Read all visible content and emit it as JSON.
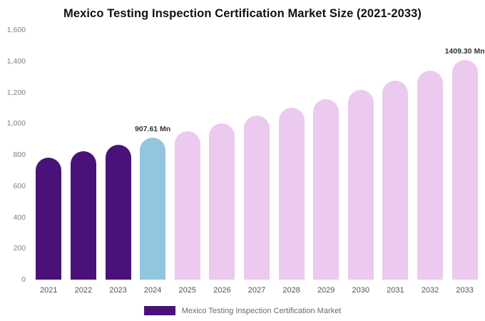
{
  "title": "Mexico Testing Inspection Certification Market Size (2021-2033)",
  "legend": {
    "label": "Mexico Testing Inspection Certification Market",
    "swatch_color": "#4a1279"
  },
  "colors": {
    "historical_bar": "#4a1279",
    "current_bar": "#92c5de",
    "forecast_bar": "#ecc9ee",
    "annotation_text": "#333333",
    "axis_text": "#808080"
  },
  "chart_data": {
    "type": "bar",
    "title": "Mexico Testing Inspection Certification Market Size (2021-2033)",
    "xlabel": "",
    "ylabel": "",
    "ylim": [
      0,
      1600
    ],
    "grid": false,
    "legend_position": "bottom",
    "categories": [
      "2021",
      "2022",
      "2023",
      "2024",
      "2025",
      "2026",
      "2027",
      "2028",
      "2029",
      "2030",
      "2031",
      "2032",
      "2033"
    ],
    "values": [
      784.0,
      823.2,
      864.4,
      907.61,
      952.9,
      1000.5,
      1050.5,
      1103.0,
      1158.1,
      1216.0,
      1276.8,
      1340.6,
      1409.3
    ],
    "bar_colors": [
      "#4a1279",
      "#4a1279",
      "#4a1279",
      "#92c5de",
      "#ecc9ee",
      "#ecc9ee",
      "#ecc9ee",
      "#ecc9ee",
      "#ecc9ee",
      "#ecc9ee",
      "#ecc9ee",
      "#ecc9ee",
      "#ecc9ee"
    ],
    "y_ticks": [
      "1,600",
      "1,400",
      "1,200",
      "1,000",
      "800",
      "600",
      "400",
      "200",
      "0"
    ],
    "annotations": [
      {
        "category": "2024",
        "text": "907.61 Mn"
      },
      {
        "category": "2033",
        "text": "1409.30 Mn"
      }
    ]
  }
}
